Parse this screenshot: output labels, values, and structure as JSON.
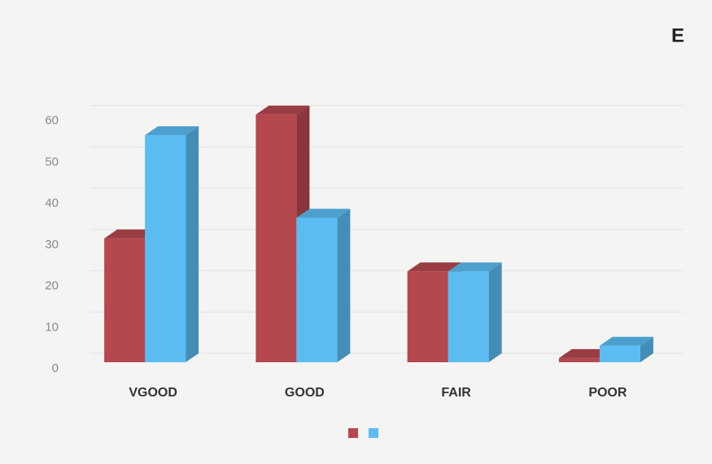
{
  "chart_data": {
    "type": "bar3d",
    "title": "E",
    "categories": [
      "VGOOD",
      "GOOD",
      "FAIR",
      "POOR"
    ],
    "series": [
      {
        "color": "#b5474f",
        "values": [
          30,
          60,
          22,
          1
        ]
      },
      {
        "color": "#5bbcf2",
        "values": [
          55,
          35,
          22,
          4
        ]
      }
    ],
    "ylim": [
      0,
      70
    ],
    "yticks": [
      0,
      10,
      20,
      30,
      40,
      50,
      60
    ],
    "grid": true,
    "legend": "bottom"
  }
}
